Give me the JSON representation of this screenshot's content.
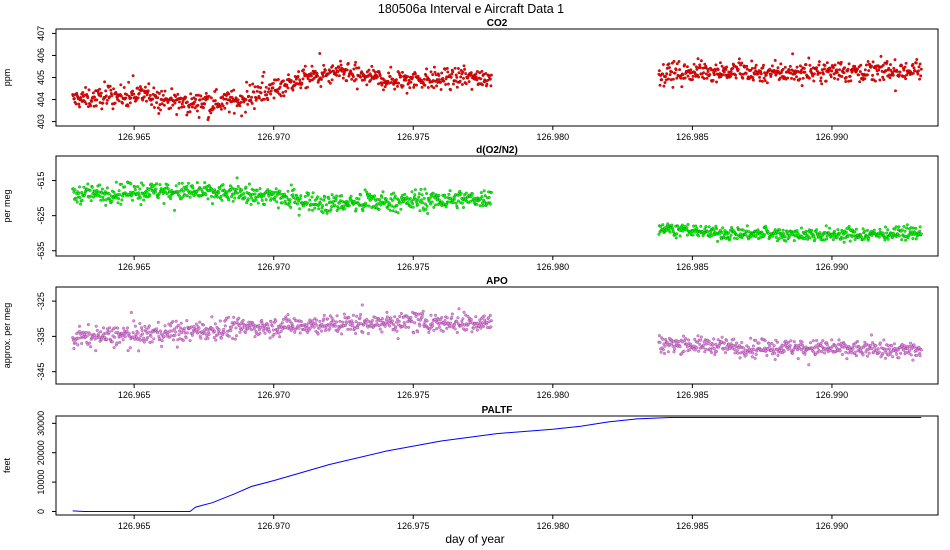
{
  "page_title": "180506a   Interval e Aircraft Data 1",
  "x_axis_label": "day of year",
  "chart_data": [
    {
      "id": "co2",
      "type": "scatter",
      "title": "CO2",
      "ylabel": "ppm",
      "xlim": [
        126.9622,
        126.9938
      ],
      "ylim": [
        402.8,
        407.2
      ],
      "x_ticks": [
        "126.965",
        "126.970",
        "126.975",
        "126.980",
        "126.985",
        "126.990"
      ],
      "y_ticks": [
        "403",
        "404",
        "405",
        "406",
        "407"
      ],
      "color": "#ff0000",
      "segments": [
        {
          "x_start": 126.9628,
          "x_end": 126.9778,
          "trend": [
            [
              126.9628,
              404.0
            ],
            [
              126.9655,
              404.2
            ],
            [
              126.9668,
              403.8
            ],
            [
              126.969,
              404.0
            ],
            [
              126.97,
              404.5
            ],
            [
              126.9712,
              405.0
            ],
            [
              126.9725,
              405.2
            ],
            [
              126.974,
              404.9
            ],
            [
              126.9778,
              405.0
            ]
          ],
          "spread": 0.5
        },
        {
          "x_start": 126.9838,
          "x_end": 126.9932,
          "trend": [
            [
              126.9838,
              405.2
            ],
            [
              126.986,
              405.3
            ],
            [
              126.988,
              405.2
            ],
            [
              126.99,
              405.3
            ],
            [
              126.9932,
              405.3
            ]
          ],
          "spread": 0.5
        }
      ]
    },
    {
      "id": "o2n2",
      "type": "scatter",
      "title": "d(O2/N2)",
      "ylabel": "per meg",
      "xlim": [
        126.9622,
        126.9938
      ],
      "ylim": [
        -636.5,
        -608.0
      ],
      "x_ticks": [
        "126.965",
        "126.970",
        "126.975",
        "126.980",
        "126.985",
        "126.990"
      ],
      "y_ticks": [
        "-615",
        "-625",
        "-635"
      ],
      "color": "#00ff00",
      "segments": [
        {
          "x_start": 126.9628,
          "x_end": 126.9778,
          "trend": [
            [
              126.9628,
              -619.0
            ],
            [
              126.965,
              -618.0
            ],
            [
              126.968,
              -618.5
            ],
            [
              126.97,
              -619.5
            ],
            [
              126.972,
              -621.5
            ],
            [
              126.9745,
              -621.0
            ],
            [
              126.9778,
              -620.0
            ]
          ],
          "spread": 2.8
        },
        {
          "x_start": 126.9838,
          "x_end": 126.9932,
          "trend": [
            [
              126.9838,
              -628.5
            ],
            [
              126.986,
              -630.0
            ],
            [
              126.99,
              -630.5
            ],
            [
              126.9932,
              -630.0
            ]
          ],
          "spread": 2.0
        }
      ]
    },
    {
      "id": "apo",
      "type": "scatter",
      "title": "APO",
      "ylabel": "approx. per meg",
      "xlim": [
        126.9622,
        126.9938
      ],
      "ylim": [
        -348.5,
        -321.0
      ],
      "x_ticks": [
        "126.965",
        "126.970",
        "126.975",
        "126.980",
        "126.985",
        "126.990"
      ],
      "y_ticks": [
        "-325",
        "-335",
        "-345"
      ],
      "color": "#ee82ee",
      "segments": [
        {
          "x_start": 126.9628,
          "x_end": 126.9778,
          "trend": [
            [
              126.9628,
              -335.5
            ],
            [
              126.966,
              -334.0
            ],
            [
              126.97,
              -332.0
            ],
            [
              126.974,
              -331.0
            ],
            [
              126.9778,
              -331.0
            ]
          ],
          "spread": 3.0
        },
        {
          "x_start": 126.9838,
          "x_end": 126.9932,
          "trend": [
            [
              126.9838,
              -337.0
            ],
            [
              126.987,
              -338.0
            ],
            [
              126.99,
              -338.5
            ],
            [
              126.9932,
              -339.0
            ]
          ],
          "spread": 2.5
        }
      ]
    },
    {
      "id": "paltf",
      "type": "line",
      "title": "PALTF",
      "ylabel": "feet",
      "xlim": [
        126.9622,
        126.9938
      ],
      "ylim": [
        -1200,
        32500
      ],
      "x_ticks": [
        "126.965",
        "126.970",
        "126.975",
        "126.980",
        "126.985",
        "126.990"
      ],
      "y_ticks": [
        "0",
        "10000",
        "20000",
        "30000"
      ],
      "color": "#0000ff",
      "x": [
        126.9628,
        126.9632,
        126.967,
        126.9672,
        126.9678,
        126.9686,
        126.9692,
        126.97,
        126.972,
        126.974,
        126.976,
        126.978,
        126.98,
        126.981,
        126.982,
        126.983,
        126.9842,
        126.986,
        126.9932
      ],
      "y": [
        200,
        0,
        0,
        1500,
        3000,
        6000,
        8500,
        10500,
        16000,
        20500,
        24000,
        26500,
        28000,
        29000,
        30500,
        31500,
        32000,
        32000,
        32000
      ]
    }
  ]
}
